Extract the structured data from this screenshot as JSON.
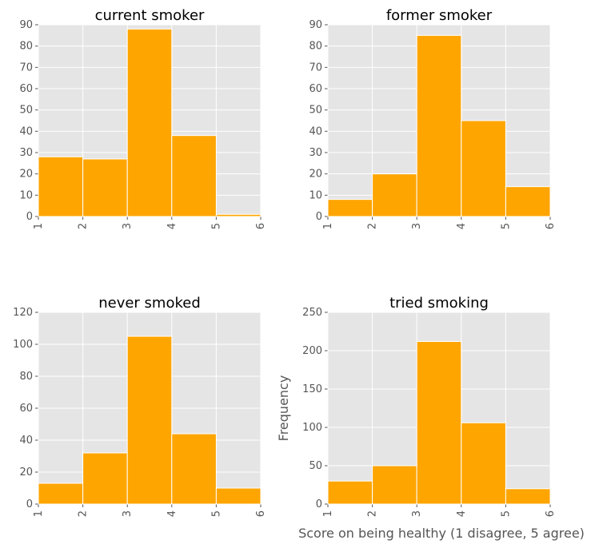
{
  "chart_data": [
    {
      "type": "histogram",
      "title": "current smoker",
      "bins": [
        1,
        2,
        3,
        4,
        5,
        6
      ],
      "counts": [
        28,
        27,
        88,
        38,
        1
      ],
      "color": "#ffa500",
      "xlim": [
        1,
        6
      ],
      "xticks": [
        1,
        2,
        3,
        4,
        5,
        6
      ],
      "ylim": [
        0,
        90
      ],
      "yticks": [
        0,
        10,
        20,
        30,
        40,
        50,
        60,
        70,
        80,
        90
      ],
      "grid": true
    },
    {
      "type": "histogram",
      "title": "former smoker",
      "bins": [
        1,
        2,
        3,
        4,
        5,
        6
      ],
      "counts": [
        8,
        20,
        85,
        45,
        14
      ],
      "color": "#ffa500",
      "xlim": [
        1,
        6
      ],
      "xticks": [
        1,
        2,
        3,
        4,
        5,
        6
      ],
      "ylim": [
        0,
        90
      ],
      "yticks": [
        0,
        10,
        20,
        30,
        40,
        50,
        60,
        70,
        80,
        90
      ],
      "grid": true
    },
    {
      "type": "histogram",
      "title": "never smoked",
      "bins": [
        1,
        2,
        3,
        4,
        5,
        6
      ],
      "counts": [
        13,
        32,
        105,
        44,
        10
      ],
      "color": "#ffa500",
      "xlim": [
        1,
        6
      ],
      "xticks": [
        1,
        2,
        3,
        4,
        5,
        6
      ],
      "ylim": [
        0,
        120
      ],
      "yticks": [
        0,
        20,
        40,
        60,
        80,
        100,
        120
      ],
      "grid": true
    },
    {
      "type": "histogram",
      "title": "tried smoking",
      "bins": [
        1,
        2,
        3,
        4,
        5,
        6
      ],
      "counts": [
        30,
        50,
        212,
        106,
        20
      ],
      "color": "#ffa500",
      "xlim": [
        1,
        6
      ],
      "xticks": [
        1,
        2,
        3,
        4,
        5,
        6
      ],
      "ylim": [
        0,
        250
      ],
      "yticks": [
        0,
        50,
        100,
        150,
        200,
        250
      ],
      "grid": true,
      "x_label": "Score on being healthy (1 disagree, 5 agree)",
      "y_label": "Frequency"
    }
  ]
}
